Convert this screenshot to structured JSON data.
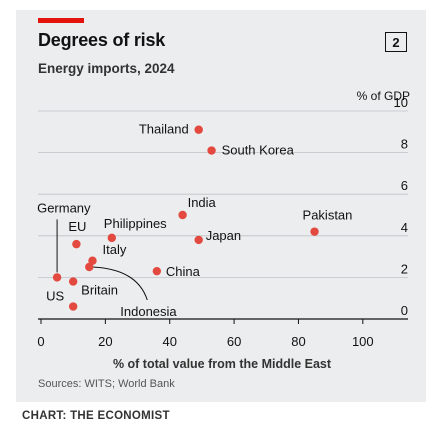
{
  "header": {
    "title": "Degrees of risk",
    "subtitle": "Energy imports, 2024",
    "badge": "2"
  },
  "footer": {
    "source": "Sources: WITS; World Bank",
    "credit": "CHART: THE ECONOMIST"
  },
  "colors": {
    "background": "#ebedee",
    "accent": "#e3120b",
    "dot": "#e3493f",
    "grid": "#bfc3c7"
  },
  "chart_data": {
    "type": "scatter",
    "xlabel": "% of total value from the Middle East",
    "ylabel": "% of GDP",
    "xlim": [
      0,
      110
    ],
    "ylim": [
      0,
      10
    ],
    "xticks": [
      0,
      20,
      40,
      60,
      80,
      100
    ],
    "yticks": [
      0,
      2,
      4,
      6,
      8,
      10
    ],
    "grid": "horizontal",
    "points": [
      {
        "label": "Thailand",
        "x": 49,
        "y": 9.1
      },
      {
        "label": "South Korea",
        "x": 53,
        "y": 8.1
      },
      {
        "label": "India",
        "x": 44,
        "y": 5.0
      },
      {
        "label": "Pakistan",
        "x": 85,
        "y": 4.2
      },
      {
        "label": "Japan",
        "x": 49,
        "y": 3.8
      },
      {
        "label": "Philippines",
        "x": 22,
        "y": 3.9
      },
      {
        "label": "Germany",
        "x": 5,
        "y": 2.0
      },
      {
        "label": "EU",
        "x": 11,
        "y": 3.6
      },
      {
        "label": "Italy",
        "x": 16,
        "y": 2.8
      },
      {
        "label": "Indonesia",
        "x": 15,
        "y": 2.5
      },
      {
        "label": "China",
        "x": 36,
        "y": 2.3
      },
      {
        "label": "Britain",
        "x": 10,
        "y": 1.8
      },
      {
        "label": "US",
        "x": 10,
        "y": 0.6
      }
    ]
  }
}
